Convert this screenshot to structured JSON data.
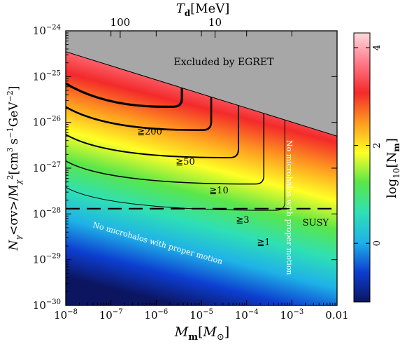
{
  "chart_data": {
    "type": "heatmap",
    "title": "",
    "x_axis": {
      "label": "M_m[M_⊙]",
      "label_main": "M",
      "label_sub": "m",
      "label_bracket_open": "[",
      "label_bracket_main": "M",
      "label_bracket_sub": "⊙",
      "label_bracket_close": "]",
      "scale": "log",
      "range": [
        1e-08,
        0.01
      ],
      "ticks": [
        {
          "value": 1e-08,
          "base": "10",
          "exp": "−8"
        },
        {
          "value": 1e-07,
          "base": "10",
          "exp": "−7"
        },
        {
          "value": 1e-06,
          "base": "10",
          "exp": "−6"
        },
        {
          "value": 1e-05,
          "base": "10",
          "exp": "−5"
        },
        {
          "value": 0.0001,
          "base": "10",
          "exp": "−4"
        },
        {
          "value": 0.001,
          "base": "10",
          "exp": "−3"
        },
        {
          "value": 0.01,
          "base": "0.01",
          "exp": ""
        }
      ]
    },
    "y_axis": {
      "label": "N_γ<σv>/M_χ^2[cm^3 s^-1 GeV^-2]",
      "label_text": "N",
      "label_sub": "γ",
      "label_mid": "<σv>/M",
      "label_sub2": "χ",
      "label_sup": "2",
      "label_unit": "[cm",
      "label_unit_sup1": "3",
      "label_unit_mid": "s",
      "label_unit_sup2": "−1",
      "label_unit_mid2": "GeV",
      "label_unit_sup3": "−2",
      "label_unit_close": "]",
      "scale": "log",
      "range": [
        1e-30,
        1e-24
      ],
      "ticks": [
        {
          "value": 1e-30,
          "base": "10",
          "exp": "−30"
        },
        {
          "value": 1e-29,
          "base": "10",
          "exp": "−29"
        },
        {
          "value": 1e-28,
          "base": "10",
          "exp": "−28"
        },
        {
          "value": 1e-27,
          "base": "10",
          "exp": "−27"
        },
        {
          "value": 1e-26,
          "base": "10",
          "exp": "−26"
        },
        {
          "value": 1e-25,
          "base": "10",
          "exp": "−25"
        },
        {
          "value": 1e-24,
          "base": "10",
          "exp": "−24"
        }
      ]
    },
    "top_axis": {
      "label_main": "T",
      "label_sub": "d",
      "label_unit": "[MeV]",
      "ticks": [
        {
          "label": "100",
          "m_value": 1.6e-07
        },
        {
          "label": "10",
          "m_value": 2e-05
        }
      ]
    },
    "colorbar": {
      "label_main": "log",
      "label_sub": "10",
      "label_mid": "[N",
      "label_sub2": "m",
      "label_close": "]",
      "range": [
        -1.2,
        4.3
      ],
      "ticks": [
        {
          "value": 0,
          "label": "0"
        },
        {
          "value": 2,
          "label": "2"
        },
        {
          "value": 4,
          "label": "4"
        }
      ],
      "color_stops": [
        "#0b1560",
        "#0d3ed0",
        "#1fb2e8",
        "#2fe0b4",
        "#5ae64a",
        "#ffff26",
        "#ff9a20",
        "#f32a2a",
        "#ff7a8a",
        "#ffd8dc"
      ]
    },
    "excluded_region": {
      "label": "Excluded by EGRET",
      "color": "#a7a7a7",
      "boundary": [
        [
          1e-08,
          3.5e-25
        ],
        [
          0.01,
          5e-27
        ]
      ]
    },
    "susy_line": {
      "label": "SUSY",
      "y": 1.3e-28
    },
    "contours": [
      {
        "label": "≧200",
        "n_level": 200,
        "m_cut": 3.7e-06,
        "y_floor": 2.2e-26,
        "line_width": 3.2
      },
      {
        "label": "≧50",
        "n_level": 50,
        "m_cut": 1.65e-05,
        "y_floor": 6.8e-27,
        "line_width": 2.6
      },
      {
        "label": "≧10",
        "n_level": 10,
        "m_cut": 6.6e-05,
        "y_floor": 1.7e-27,
        "line_width": 2.0
      },
      {
        "label": "≧3",
        "n_level": 3,
        "m_cut": 0.00024,
        "y_floor": 4.5e-28,
        "line_width": 1.5
      },
      {
        "label": "≧1",
        "n_level": 1,
        "m_cut": 0.0007,
        "y_floor": 1.2e-28,
        "line_width": 1.0
      }
    ],
    "annotations": [
      {
        "id": "no-micro-bottom",
        "text": "No microhalos with proper motion"
      },
      {
        "id": "no-micro-right",
        "text": "No microhalos with proper motion"
      }
    ]
  }
}
